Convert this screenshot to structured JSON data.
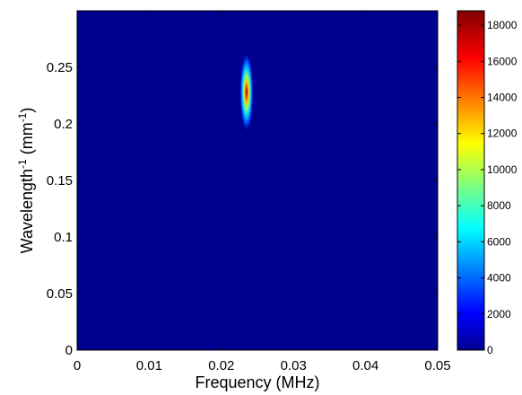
{
  "chart_data": {
    "type": "heatmap",
    "title": "",
    "xlabel": "Frequency (MHz)",
    "ylabel": {
      "prefix": "Wavelength",
      "superscript_1": "-1",
      "middle": " (mm",
      "superscript_2": "-1",
      "suffix": ")"
    },
    "xlim": [
      0,
      0.05
    ],
    "ylim": [
      0,
      0.3
    ],
    "x_ticks": [
      0,
      0.01,
      0.02,
      0.03,
      0.04,
      0.05
    ],
    "x_tick_labels": [
      "0",
      "0.01",
      "0.02",
      "0.03",
      "0.04",
      "0.05"
    ],
    "y_ticks": [
      0,
      0.05,
      0.1,
      0.15,
      0.2,
      0.25
    ],
    "y_tick_labels": [
      "0",
      "0.05",
      "0.1",
      "0.15",
      "0.2",
      "0.25"
    ],
    "colormap": "jet",
    "colorbar": {
      "range": [
        0,
        18800
      ],
      "ticks": [
        0,
        2000,
        4000,
        6000,
        8000,
        10000,
        12000,
        14000,
        16000,
        18000
      ],
      "tick_labels": [
        "0",
        "2000",
        "4000",
        "6000",
        "8000",
        "10000",
        "12000",
        "14000",
        "16000",
        "18000"
      ]
    },
    "background_value": 0,
    "peak": {
      "x": 0.0235,
      "y": 0.228,
      "value": 18500,
      "sigma_x": 0.0003,
      "sigma_y": 0.011
    },
    "grid": false
  }
}
